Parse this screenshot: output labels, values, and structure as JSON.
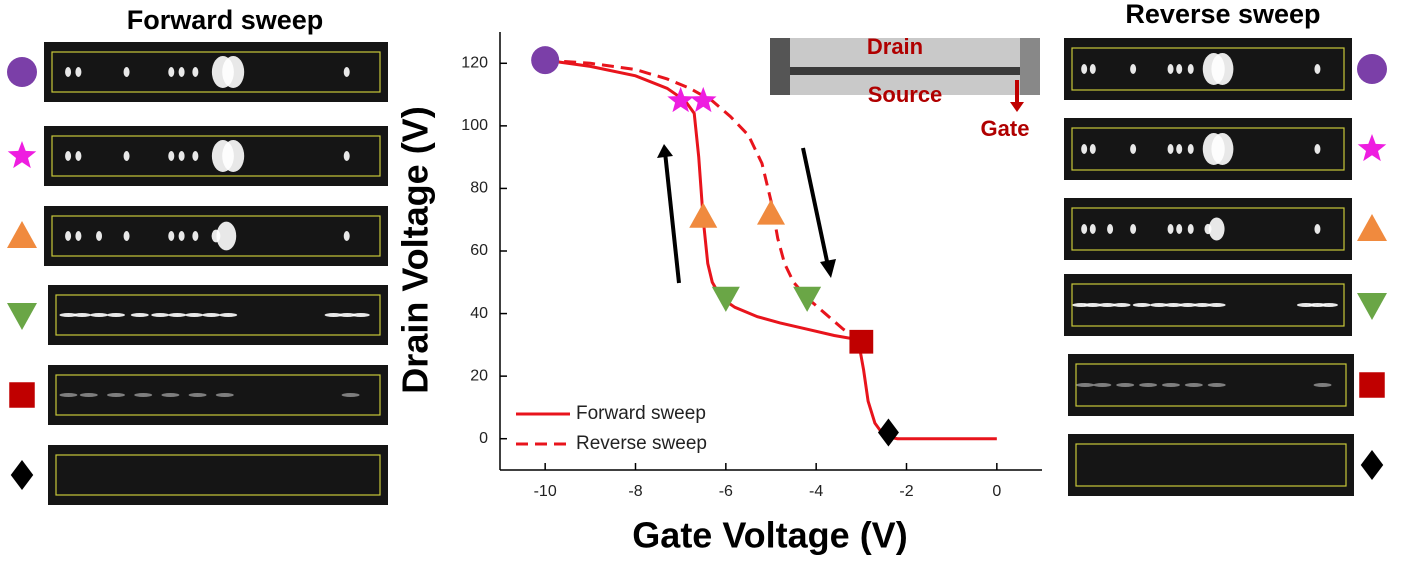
{
  "chart_data": {
    "type": "line",
    "xlabel": "Gate Voltage (V)",
    "ylabel": "Drain Voltage (V)",
    "xlim": [
      -11,
      1
    ],
    "xticks": [
      -10,
      -8,
      -6,
      -4,
      -2,
      0
    ],
    "ylim": [
      -10,
      130
    ],
    "yticks": [
      0,
      20,
      40,
      60,
      80,
      100,
      120
    ],
    "legend": "lower left",
    "series": [
      {
        "name": "Forward sweep",
        "color": "#e8141c",
        "dash": false,
        "x": [
          -10,
          -9,
          -8,
          -7.3,
          -6.9,
          -6.7,
          -6.6,
          -6.5,
          -6.4,
          -6.3,
          -6.1,
          -5.8,
          -5.3,
          -4.8,
          -4.2,
          -3.6,
          -3.2,
          -3.05,
          -2.95,
          -2.85,
          -2.7,
          -2.55,
          -2.4,
          -2.2,
          -1.5,
          -0.5,
          0
        ],
        "values": [
          121,
          119,
          116,
          112,
          108,
          104,
          90,
          70,
          56,
          50,
          45,
          42,
          39,
          37,
          35,
          33,
          32,
          30,
          22,
          12,
          5,
          2,
          0.5,
          0,
          0,
          0,
          0
        ]
      },
      {
        "name": "Reverse sweep",
        "color": "#e8141c",
        "dash": true,
        "x": [
          -10,
          -9,
          -8,
          -7.3,
          -6.8,
          -6.3,
          -5.9,
          -5.5,
          -5.2,
          -5.0,
          -4.85,
          -4.7,
          -4.5,
          -4.2,
          -3.8,
          -3.4,
          -3.0
        ],
        "values": [
          121,
          120,
          118,
          115,
          112,
          108,
          103,
          97,
          88,
          76,
          64,
          56,
          50,
          45,
          40,
          35,
          31
        ]
      }
    ],
    "markers": [
      {
        "x": -10,
        "y": 121,
        "shape": "circle",
        "color": "#7b3fa8"
      },
      {
        "x": -7.0,
        "y": 108,
        "shape": "star",
        "color": "#ee1de0"
      },
      {
        "x": -6.5,
        "y": 108,
        "shape": "star",
        "color": "#ee1de0"
      },
      {
        "x": -6.5,
        "y": 71,
        "shape": "triangle-up",
        "color": "#f08a3e"
      },
      {
        "x": -5.0,
        "y": 72,
        "shape": "triangle-up",
        "color": "#f08a3e"
      },
      {
        "x": -6.0,
        "y": 45,
        "shape": "triangle-down",
        "color": "#6aa646"
      },
      {
        "x": -4.2,
        "y": 45,
        "shape": "triangle-down",
        "color": "#6aa646"
      },
      {
        "x": -3.0,
        "y": 31,
        "shape": "square",
        "color": "#c00000"
      },
      {
        "x": -2.4,
        "y": 2,
        "shape": "diamond",
        "color": "#000000"
      }
    ],
    "inset_labels": [
      "Drain",
      "Source",
      "Gate"
    ]
  },
  "panels": {
    "left_title": "Forward sweep",
    "right_title": "Reverse sweep"
  }
}
